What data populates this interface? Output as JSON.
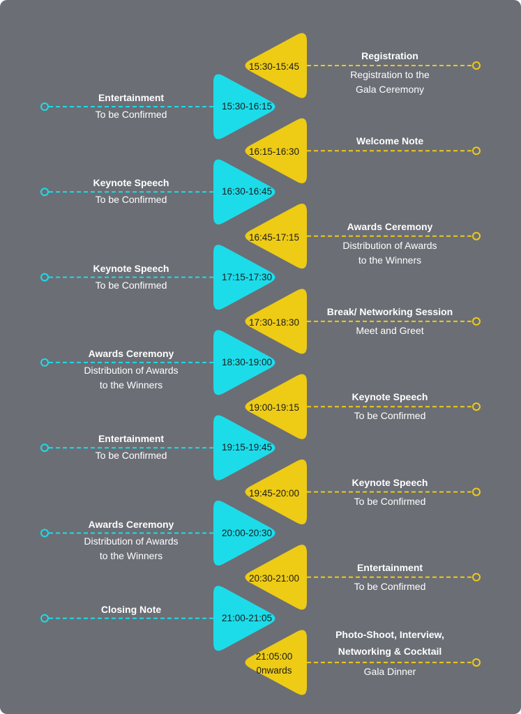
{
  "colors": {
    "background": "#6b6e75",
    "left_accent": "#1cdcea",
    "right_accent": "#eecb15",
    "text": "#ffffff",
    "time_text": "#1c1c1c"
  },
  "right_items": [
    {
      "time": [
        "15:30-15:45"
      ],
      "title": "Registration",
      "subtitle": [
        "Registration to the",
        "Gala Ceremony"
      ]
    },
    {
      "time": [
        "16:15-16:30"
      ],
      "title": "Welcome Note",
      "subtitle": []
    },
    {
      "time": [
        "16:45-17:15"
      ],
      "title": "Awards Ceremony",
      "subtitle": [
        "Distribution of Awards",
        "to the Winners"
      ]
    },
    {
      "time": [
        "17:30-18:30"
      ],
      "title": "Break/ Networking Session",
      "subtitle": [
        "Meet and Greet"
      ]
    },
    {
      "time": [
        "19:00-19:15"
      ],
      "title": "Keynote Speech",
      "subtitle": [
        "To be Confirmed"
      ]
    },
    {
      "time": [
        "19:45-20:00"
      ],
      "title": "Keynote Speech",
      "subtitle": [
        "To be Confirmed"
      ]
    },
    {
      "time": [
        "20:30-21:00"
      ],
      "title": "Entertainment",
      "subtitle": [
        "To be Confirmed"
      ]
    },
    {
      "time": [
        "21:05:00",
        "0nwards"
      ],
      "title": "Photo-Shoot, Interview,\nNetworking & Cocktail",
      "subtitle": [
        "Gala Dinner"
      ]
    }
  ],
  "left_items": [
    {
      "time": "15:30-16:15",
      "title": "Entertainment",
      "subtitle": [
        "To be Confirmed"
      ]
    },
    {
      "time": "16:30-16:45",
      "title": "Keynote Speech",
      "subtitle": [
        "To be Confirmed"
      ]
    },
    {
      "time": "17:15-17:30",
      "title": "Keynote Speech",
      "subtitle": [
        "To be Confirmed"
      ]
    },
    {
      "time": "18:30-19:00",
      "title": "Awards Ceremony",
      "subtitle": [
        "Distribution of Awards",
        "to the Winners"
      ]
    },
    {
      "time": "19:15-19:45",
      "title": "Entertainment",
      "subtitle": [
        "To be Confirmed"
      ]
    },
    {
      "time": "20:00-20:30",
      "title": "Awards Ceremony",
      "subtitle": [
        "Distribution of Awards",
        "to the Winners"
      ]
    },
    {
      "time": "21:00-21:05",
      "title": "Closing Note",
      "subtitle": []
    }
  ]
}
